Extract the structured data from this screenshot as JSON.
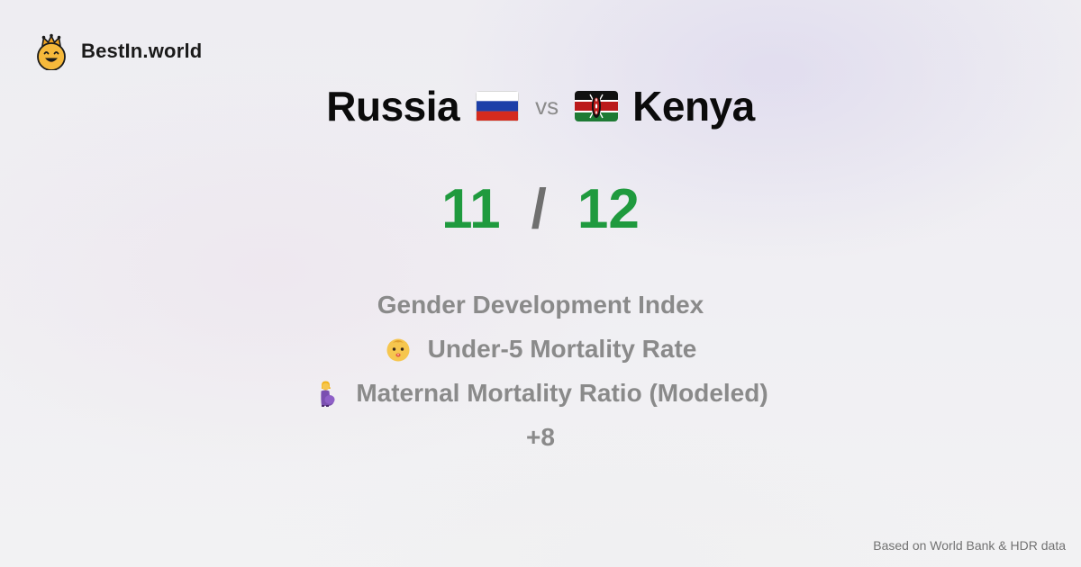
{
  "brand": {
    "name": "BestIn.world",
    "logo_icon": "crown-smiley-icon"
  },
  "comparison": {
    "left_country": "Russia",
    "left_flag_icon": "russia-flag-icon",
    "vs_label": "vs",
    "right_country": "Kenya",
    "right_flag_icon": "kenya-flag-icon"
  },
  "score": {
    "left": "11",
    "separator": "/",
    "right": "12",
    "color": "#1f9a3e"
  },
  "metrics": [
    {
      "label": "Gender Development Index",
      "icon": ""
    },
    {
      "label": "Under-5 Mortality Rate",
      "icon": "baby-icon"
    },
    {
      "label": "Maternal Mortality Ratio (Modeled)",
      "icon": "pregnant-woman-icon"
    }
  ],
  "more_label": "+8",
  "footer": {
    "source": "Based on World Bank & HDR data"
  }
}
